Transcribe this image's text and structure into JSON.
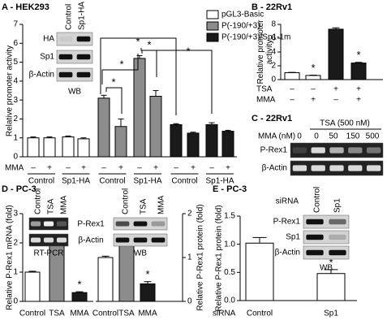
{
  "chart_data": [
    {
      "type": "bar",
      "title": "A - HEK293",
      "ylabel": "Relative promoter activity",
      "ylim": [
        0,
        7
      ],
      "yticks": [
        0,
        1,
        2,
        3,
        4,
        5,
        6,
        7
      ],
      "categories": [
        "–",
        "+",
        "–",
        "+"
      ],
      "groups": [
        "Control",
        "Sp1-HA"
      ],
      "row_label": "MMA",
      "series": [
        {
          "name": "pGL3-Basic",
          "color": "#ffffff",
          "values": [
            1.0,
            1.0,
            1.05,
            0.95
          ],
          "errors": [
            0.05,
            0.05,
            0.05,
            0.05
          ]
        },
        {
          "name": "P(-190/+3)",
          "color": "#8c8c8c",
          "values": [
            3.1,
            1.6,
            5.2,
            3.2
          ],
          "errors": [
            0.15,
            0.4,
            0.15,
            0.3
          ]
        },
        {
          "name": "P(-190/+3)/Sp1-1m",
          "color": "#1a1a1a",
          "values": [
            1.7,
            1.25,
            1.7,
            1.35
          ],
          "errors": [
            0.05,
            0.05,
            0.1,
            0.05
          ]
        }
      ],
      "significance": "*",
      "inset": {
        "columns": [
          "Control",
          "Sp1-HA"
        ],
        "rows": [
          "HA",
          "Sp1",
          "β-Actin"
        ],
        "caption": "WB"
      }
    },
    {
      "type": "bar",
      "title": "B - 22Rv1",
      "ylabel": "Relative promoter activity",
      "ylim": [
        0,
        8
      ],
      "yticks": [
        0,
        2,
        4,
        6,
        8
      ],
      "values": [
        1.0,
        0.6,
        7.3,
        2.4
      ],
      "errors": [
        0.05,
        0.05,
        0.2,
        0.1
      ],
      "colors": [
        "#ffffff",
        "#ffffff",
        "#1a1a1a",
        "#1a1a1a"
      ],
      "rows": [
        {
          "label": "TSA",
          "values": [
            "–",
            "–",
            "+",
            "+"
          ]
        },
        {
          "label": "MMA",
          "values": [
            "–",
            "+",
            "–",
            "+"
          ]
        }
      ],
      "significance": "*"
    },
    {
      "type": "blot",
      "title": "C - 22Rv1",
      "treatment": "TSA (500 nM)",
      "row_label": "MMA (nM)",
      "columns": [
        "0",
        "0",
        "50",
        "150",
        "500"
      ],
      "rows": [
        "P-Rex1",
        "β-Actin"
      ]
    },
    {
      "type": "bar",
      "title": "D - PC-3",
      "ylabel": "Relative P-Rex1 mRNA (fold)",
      "ylim": [
        0,
        3
      ],
      "yticks": [
        0,
        1,
        2,
        3
      ],
      "categories": [
        "Control",
        "TSA",
        "MMA"
      ],
      "values": [
        1.0,
        2.2,
        0.3
      ],
      "errors": [
        0.03,
        0.07,
        0.03
      ],
      "colors": [
        "#ffffff",
        "#8c8c8c",
        "#1a1a1a"
      ],
      "significance": "*",
      "inset": {
        "columns": [
          "Control",
          "TSA",
          "MMA"
        ],
        "caption": "RT-PCR"
      }
    },
    {
      "type": "bar",
      "ylabel": "Relative P-Rex1 protein (fold)",
      "axis_side": "right",
      "ylim": [
        0,
        2
      ],
      "yticks": [
        0,
        1,
        2
      ],
      "categories": [
        "Control",
        "TSA",
        "MMA"
      ],
      "values": [
        1.0,
        1.35,
        0.4
      ],
      "errors": [
        0.03,
        0.07,
        0.05
      ],
      "colors": [
        "#ffffff",
        "#8c8c8c",
        "#1a1a1a"
      ],
      "significance": "*",
      "inset": {
        "columns": [
          "Control",
          "TSA",
          "MMA"
        ],
        "rows": [
          "P-Rex1",
          "β-Actin"
        ],
        "caption": "WB"
      }
    },
    {
      "type": "bar",
      "title": "E - PC-3",
      "ylabel": "Relative P-Rex1 protein (fold)",
      "ylim": [
        0,
        1.5
      ],
      "yticks": [
        {
          "value": 0,
          "label": "0.0"
        },
        {
          "value": 0.5,
          "label": "0.5"
        },
        {
          "value": 1,
          "label": "1.0"
        },
        {
          "value": 1.5,
          "label": "1.5"
        }
      ],
      "categories": [
        "Control",
        "Sp1"
      ],
      "x_label": "siRNA",
      "values": [
        1.02,
        0.48
      ],
      "errors": [
        0.1,
        0.07
      ],
      "colors": [
        "#ffffff",
        "#ffffff"
      ],
      "significance": "*",
      "inset": {
        "title": "siRNA",
        "columns": [
          "Control",
          "Sp1"
        ],
        "rows": [
          "P-Rex1",
          "Sp1",
          "β-Actin"
        ],
        "caption": "WB"
      }
    }
  ]
}
